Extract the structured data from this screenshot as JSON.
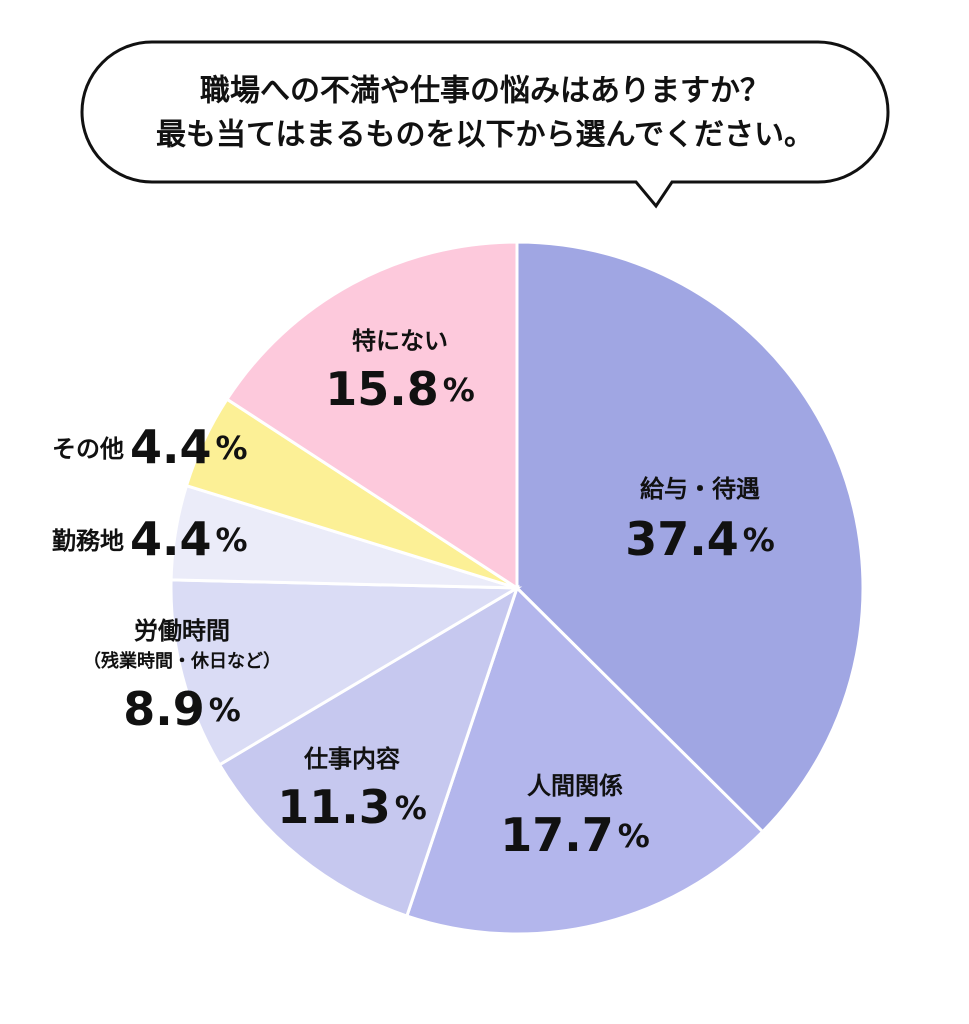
{
  "chart_data": {
    "type": "pie",
    "title": [
      "職場への不満や仕事の悩みはありますか？",
      "最も当てはまるものを以下から選んでください。"
    ],
    "categories": [
      "給与・待遇",
      "人間関係",
      "仕事内容",
      "労働時間",
      "勤務地",
      "その他",
      "特にない"
    ],
    "category_sublabels": [
      null,
      null,
      null,
      "（残業時間・休日など）",
      null,
      null,
      null
    ],
    "values": [
      37.4,
      17.7,
      11.3,
      8.9,
      4.4,
      4.4,
      15.8
    ],
    "value_labels": [
      "37.4%",
      "17.7%",
      "11.3%",
      "8.9%",
      "4.4%",
      "4.4%",
      "15.8%"
    ],
    "colors": [
      "#a0a6e3",
      "#b3b6ec",
      "#c6c8ef",
      "#dadcf5",
      "#ebecf9",
      "#fcf096",
      "#fdc9dc"
    ]
  }
}
